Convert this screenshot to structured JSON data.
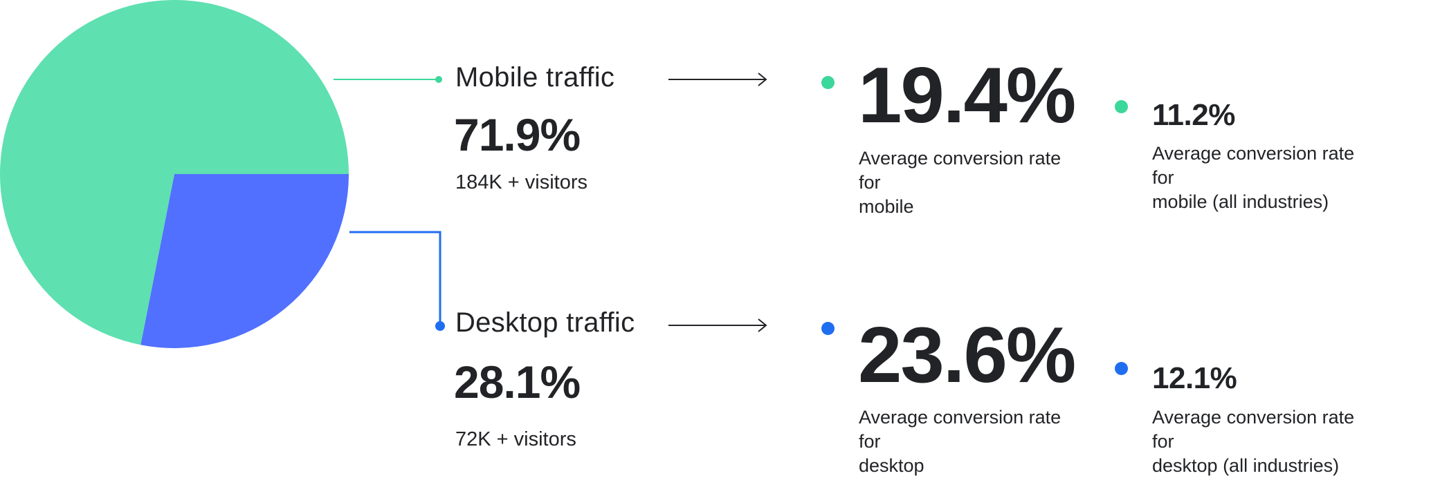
{
  "colors": {
    "mobile": "#5ee0b0",
    "desktop": "#5170ff",
    "desktop_marker": "#1f6ef0",
    "mobile_marker": "#3cd79a",
    "text": "#222326",
    "arrow": "#222326"
  },
  "chart_data": {
    "type": "pie",
    "series": [
      {
        "name": "Mobile traffic",
        "value": 71.9
      },
      {
        "name": "Desktop traffic",
        "value": 28.1
      }
    ]
  },
  "mobile": {
    "label": "Mobile traffic",
    "percent": "71.9%",
    "visitors": "184K + visitors",
    "rate": "19.4%",
    "rate_desc_1": "Average conversion rate for",
    "rate_desc_2": "mobile",
    "industry_rate": "11.2%",
    "industry_desc_1": "Average conversion rate for",
    "industry_desc_2": "mobile (all industries)"
  },
  "desktop": {
    "label": "Desktop traffic",
    "percent": "28.1%",
    "visitors": "72K + visitors",
    "rate": "23.6%",
    "rate_desc_1": "Average conversion rate for",
    "rate_desc_2": "desktop",
    "industry_rate": "12.1%",
    "industry_desc_1": "Average conversion rate for",
    "industry_desc_2": "desktop (all industries)"
  }
}
